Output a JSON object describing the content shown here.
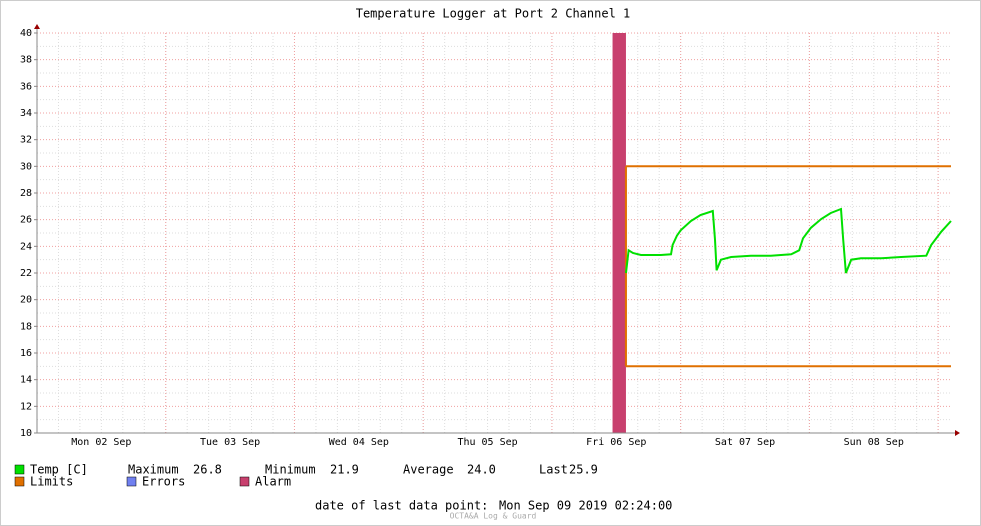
{
  "chart_data": {
    "type": "line",
    "title": "Temperature Logger at Port 2 Channel 1",
    "xlim": [
      0,
      170.4
    ],
    "xticks": [
      {
        "value": 12,
        "label": "Mon 02 Sep"
      },
      {
        "value": 36,
        "label": "Tue 03 Sep"
      },
      {
        "value": 60,
        "label": "Wed 04 Sep"
      },
      {
        "value": 84,
        "label": "Thu 05 Sep"
      },
      {
        "value": 108,
        "label": "Fri 06 Sep"
      },
      {
        "value": 132,
        "label": "Sat 07 Sep"
      },
      {
        "value": 156,
        "label": "Sun 08 Sep"
      }
    ],
    "ylim": [
      10,
      40
    ],
    "yticks": [
      10,
      12,
      14,
      16,
      18,
      20,
      22,
      24,
      26,
      28,
      30,
      32,
      34,
      36,
      38,
      40
    ],
    "grid": true,
    "series": [
      {
        "name": "Temp [C]",
        "color": "#00e000",
        "x": [
          109.8,
          110.3,
          111.1,
          112.6,
          114.4,
          116.3,
          118.2,
          118.5,
          119.3,
          120.0,
          121.9,
          123.7,
          126.0,
          126.4,
          126.7,
          127.5,
          129.4,
          133.1,
          136.8,
          140.6,
          142.1,
          142.8,
          144.3,
          146.2,
          148.0,
          149.9,
          150.3,
          150.8,
          151.8,
          153.6,
          157.4,
          161.1,
          165.8,
          166.7,
          168.6,
          170.4
        ],
        "values": [
          22.0,
          23.7,
          23.5,
          23.35,
          23.35,
          23.35,
          23.4,
          24.1,
          24.8,
          25.2,
          25.9,
          26.35,
          26.65,
          24.5,
          22.2,
          23.0,
          23.2,
          23.3,
          23.3,
          23.4,
          23.7,
          24.6,
          25.4,
          26.05,
          26.5,
          26.8,
          24.5,
          22.0,
          23.0,
          23.1,
          23.1,
          23.2,
          23.3,
          24.1,
          25.1,
          25.9
        ]
      }
    ],
    "limits": {
      "name": "Limits",
      "color": "#e07000",
      "x": [
        109.8,
        170.4
      ],
      "upper": [
        30,
        30
      ],
      "lower": [
        15,
        15
      ]
    },
    "errors": {
      "name": "Errors",
      "color": "#7080f0"
    },
    "alarm": {
      "name": "Alarm",
      "color": "#c8406e",
      "span": [
        107.3,
        109.8
      ]
    },
    "stats": {
      "maximum_label": "Maximum",
      "maximum": 26.8,
      "minimum_label": "Minimum",
      "minimum": 21.9,
      "average_label": "Average",
      "average": {
        "value": 24.0,
        "label": "24.0"
      },
      "last_label": "Last",
      "last": 25.9
    },
    "footer": {
      "label": "date of last data point:",
      "date": "Mon Sep 09 2019 02:24:00",
      "watermark": "OCTA&A Log & Guard"
    }
  }
}
